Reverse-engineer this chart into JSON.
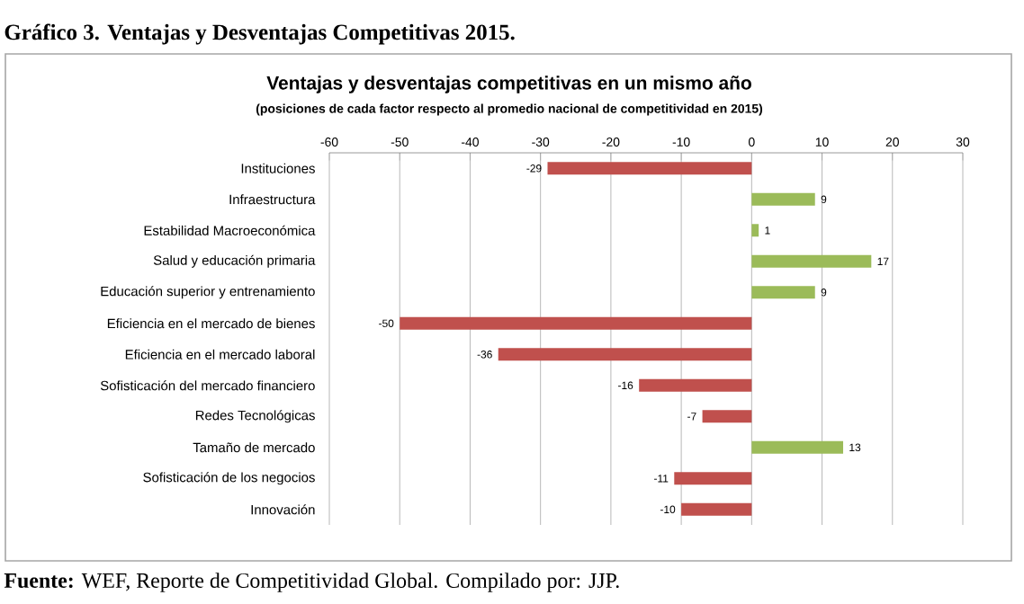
{
  "chart_data": {
    "type": "bar",
    "orientation": "horizontal",
    "title": "Ventajas y desventajas competitivas en un mismo año",
    "subtitle": "(posiciones de cada factor respecto al promedio nacional de competitividad en 2015)",
    "annotations": [
      "Gráfico 3. Ventajas y Desventajas Competitivas 2015.",
      "**Fuente:** WEF, Reporte de Competitividad Global. Compilado por: JJP."
    ],
    "categories": [
      "Instituciones",
      "Infraestructura",
      "Estabilidad Macroeconómica",
      "Salud y educación primaria",
      "Educación superior y entrenamiento",
      "Eficiencia en el mercado de bienes",
      "Eficiencia en el mercado laboral",
      "Sofisticación del mercado financiero",
      "Redes Tecnológicas",
      "Tamaño de mercado",
      "Sofisticación de los negocios",
      "Innovación"
    ],
    "values": [
      -29,
      9,
      1,
      17,
      9,
      -50,
      -36,
      -16,
      -7,
      13,
      -11,
      -10
    ],
    "colors": [
      "#c0504d",
      "#9bbb59",
      "#9bbb59",
      "#9bbb59",
      "#9bbb59",
      "#c0504d",
      "#c0504d",
      "#c0504d",
      "#c0504d",
      "#9bbb59",
      "#c0504d",
      "#c0504d"
    ],
    "xlim": [
      -60,
      30
    ],
    "xticks": [
      -60,
      -50,
      -40,
      -30,
      -20,
      -10,
      0,
      10,
      20,
      30
    ],
    "grid": "x",
    "data_labels": true
  }
}
